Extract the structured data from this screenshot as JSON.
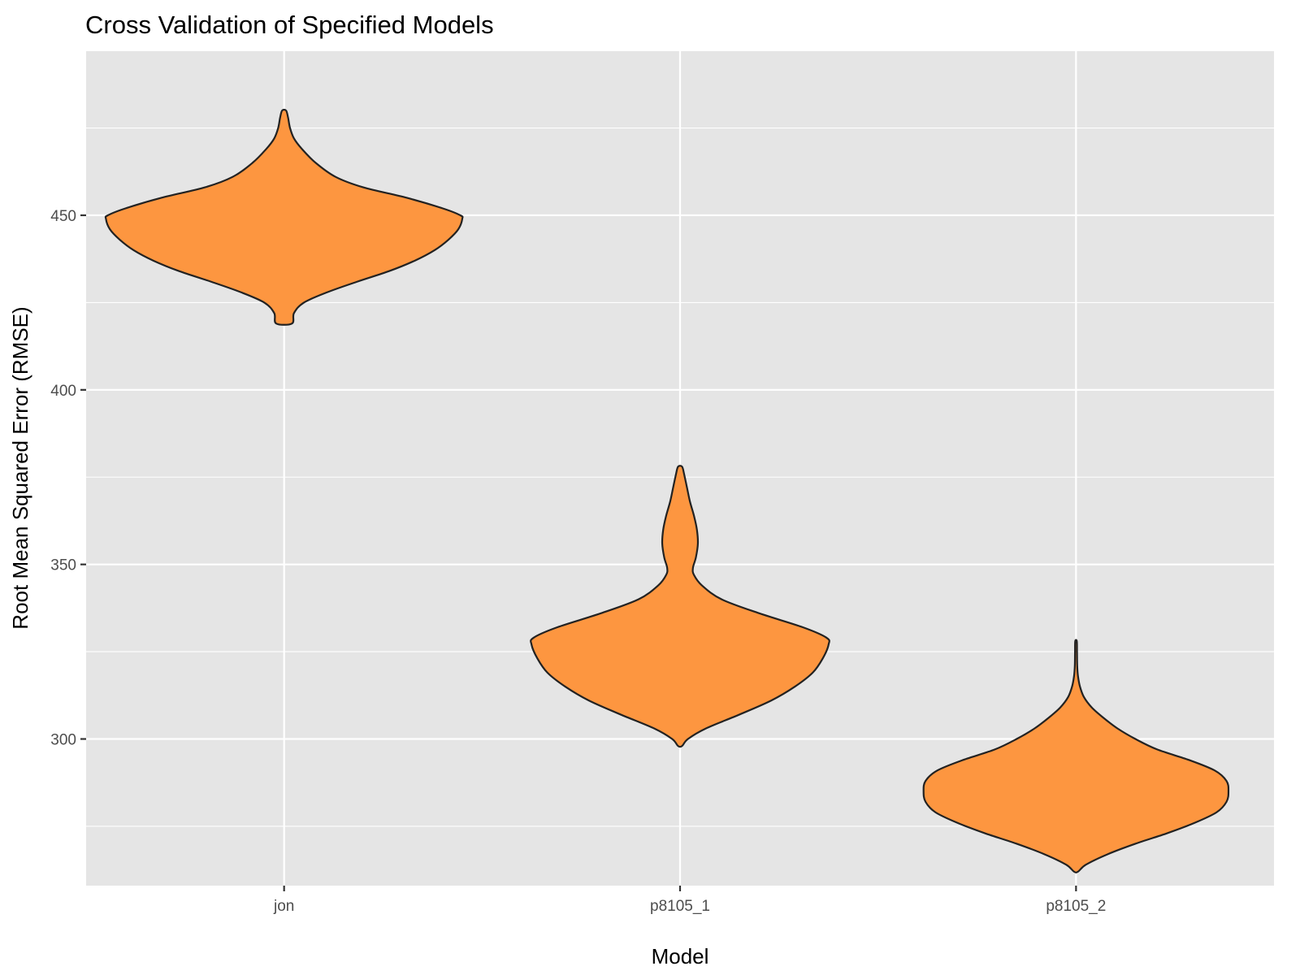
{
  "chart_data": {
    "type": "violin",
    "title": "Cross Validation of Specified Models",
    "xlabel": "Model",
    "ylabel": "Root Mean Squared Error (RMSE)",
    "categories": [
      "jon",
      "p8105_1",
      "p8105_2"
    ],
    "y_ticks": [
      300,
      350,
      400,
      450
    ],
    "ylim": [
      258,
      497
    ],
    "grid": true,
    "fill_color": "#FD9640",
    "outline_color": "#222222",
    "panel_background": "#E5E5E5",
    "violins": [
      {
        "category": "jon",
        "min": 419,
        "max": 480,
        "density_profile": [
          [
            419,
            0.04
          ],
          [
            422,
            0.05
          ],
          [
            425,
            0.1
          ],
          [
            428,
            0.22
          ],
          [
            431,
            0.37
          ],
          [
            434,
            0.53
          ],
          [
            437,
            0.66
          ],
          [
            440,
            0.76
          ],
          [
            443,
            0.83
          ],
          [
            446,
            0.88
          ],
          [
            449,
            0.9
          ],
          [
            450,
            0.89
          ],
          [
            452,
            0.8
          ],
          [
            455,
            0.62
          ],
          [
            458,
            0.4
          ],
          [
            461,
            0.26
          ],
          [
            465,
            0.16
          ],
          [
            469,
            0.09
          ],
          [
            472,
            0.05
          ],
          [
            475,
            0.03
          ],
          [
            478,
            0.02
          ],
          [
            480,
            0.01
          ]
        ]
      },
      {
        "category": "p8105_1",
        "min": 298,
        "max": 378,
        "density_profile": [
          [
            298,
            0.01
          ],
          [
            300,
            0.04
          ],
          [
            303,
            0.13
          ],
          [
            307,
            0.3
          ],
          [
            311,
            0.46
          ],
          [
            315,
            0.58
          ],
          [
            319,
            0.67
          ],
          [
            323,
            0.72
          ],
          [
            327,
            0.75
          ],
          [
            329,
            0.74
          ],
          [
            332,
            0.62
          ],
          [
            336,
            0.4
          ],
          [
            340,
            0.21
          ],
          [
            344,
            0.11
          ],
          [
            347,
            0.07
          ],
          [
            349,
            0.065
          ],
          [
            352,
            0.08
          ],
          [
            356,
            0.09
          ],
          [
            360,
            0.085
          ],
          [
            364,
            0.07
          ],
          [
            368,
            0.05
          ],
          [
            372,
            0.035
          ],
          [
            376,
            0.02
          ],
          [
            378,
            0.01
          ]
        ]
      },
      {
        "category": "p8105_2",
        "min": 262,
        "max": 328,
        "density_profile": [
          [
            262,
            0.01
          ],
          [
            264,
            0.05
          ],
          [
            267,
            0.16
          ],
          [
            270,
            0.3
          ],
          [
            273,
            0.46
          ],
          [
            276,
            0.6
          ],
          [
            279,
            0.71
          ],
          [
            282,
            0.76
          ],
          [
            285,
            0.77
          ],
          [
            288,
            0.76
          ],
          [
            291,
            0.7
          ],
          [
            294,
            0.57
          ],
          [
            297,
            0.41
          ],
          [
            300,
            0.3
          ],
          [
            303,
            0.21
          ],
          [
            306,
            0.14
          ],
          [
            309,
            0.08
          ],
          [
            312,
            0.04
          ],
          [
            315,
            0.02
          ],
          [
            318,
            0.01
          ],
          [
            321,
            0.006
          ],
          [
            325,
            0.005
          ],
          [
            328,
            0.004
          ]
        ]
      }
    ]
  }
}
